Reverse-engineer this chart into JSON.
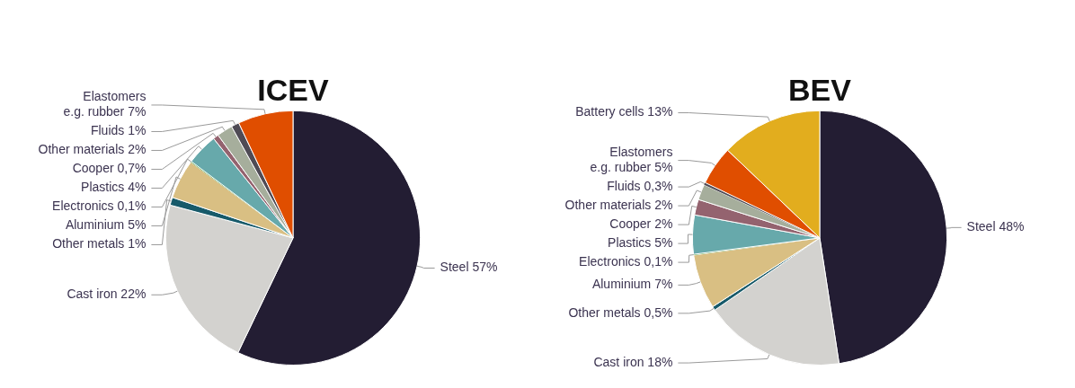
{
  "chart_data": [
    {
      "type": "pie",
      "title": "ICEV",
      "categories": [
        "Steel",
        "Cast iron",
        "Other metals",
        "Aluminium",
        "Electronics",
        "Plastics",
        "Cooper",
        "Other materials",
        "Fluids",
        "Elastomers\ne.g. rubber"
      ],
      "values": [
        57,
        22,
        1,
        5,
        0.1,
        4,
        0.7,
        2,
        1,
        7
      ],
      "value_labels": [
        "57%",
        "22%",
        "1%",
        "5%",
        "0,1%",
        "4%",
        "0,7%",
        "2%",
        "1%",
        "7%"
      ],
      "colors": [
        "#231d33",
        "#d3d2cf",
        "#175a6a",
        "#d9bf83",
        "#3a9a3a",
        "#67a9ab",
        "#94636f",
        "#a6ae9c",
        "#4f4b55",
        "#e04e00"
      ]
    },
    {
      "type": "pie",
      "title": "BEV",
      "categories": [
        "Steel",
        "Cast iron",
        "Other metals",
        "Aluminium",
        "Electronics",
        "Plastics",
        "Cooper",
        "Other materials",
        "Fluids",
        "Elastomers\ne.g. rubber",
        "Battery cells"
      ],
      "values": [
        48,
        18,
        0.5,
        7,
        0.1,
        5,
        2,
        2,
        0.3,
        5,
        13
      ],
      "value_labels": [
        "48%",
        "18%",
        "0,5%",
        "7%",
        "0,1%",
        "5%",
        "2%",
        "2%",
        "0,3%",
        "5%",
        "13%"
      ],
      "colors": [
        "#231d33",
        "#d3d2cf",
        "#175a6a",
        "#d9bf83",
        "#3a9a3a",
        "#67a9ab",
        "#94636f",
        "#a6ae9c",
        "#4f4b55",
        "#e04e00",
        "#e2ad1e"
      ]
    }
  ]
}
